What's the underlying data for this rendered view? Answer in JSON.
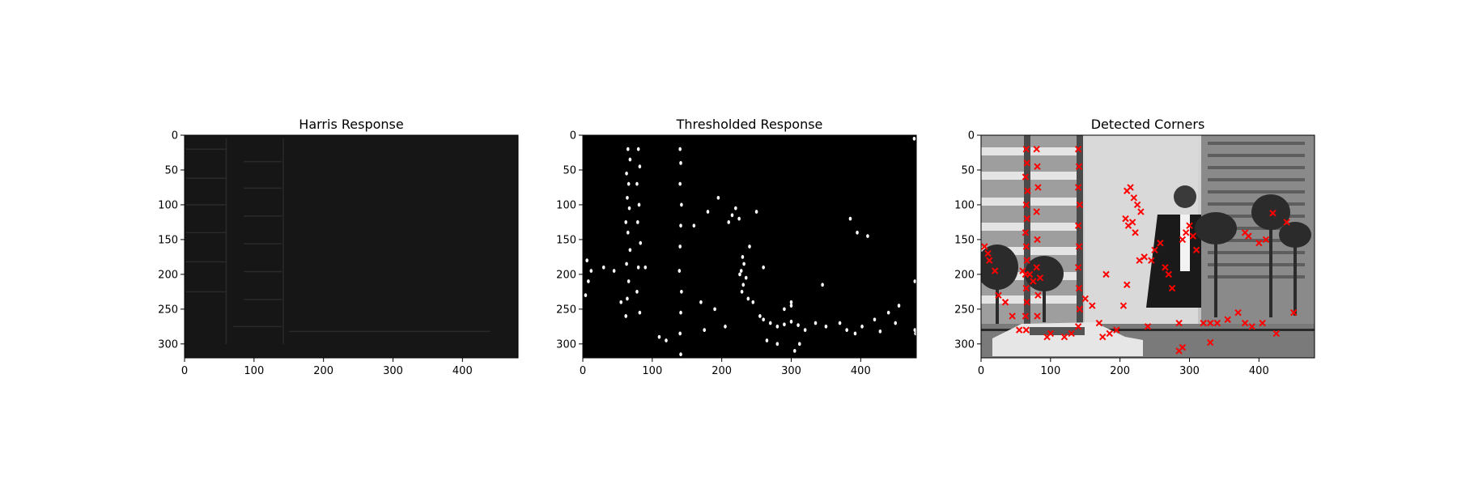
{
  "figure": {
    "background": "#ffffff"
  },
  "panels": [
    {
      "title": "Harris Response",
      "image_kind": "harris-response-heatmap",
      "colors": {
        "background": "#161616",
        "accent": "#2a2a2a"
      }
    },
    {
      "title": "Thresholded Response",
      "image_kind": "binary-threshold-map",
      "colors": {
        "background": "#000000",
        "accent": "#ffffff"
      }
    },
    {
      "title": "Detected Corners",
      "image_kind": "grayscale-photo-with-corner-markers",
      "colors": {
        "background": "#cfcfcf",
        "accent": "#ff0000"
      }
    }
  ],
  "chart_data": [
    {
      "type": "heatmap",
      "title": "Harris Response",
      "xlim": [
        0,
        480
      ],
      "ylim": [
        320,
        0
      ],
      "xticks": [
        0,
        100,
        200,
        300,
        400
      ],
      "yticks": [
        0,
        50,
        100,
        150,
        200,
        250,
        300
      ],
      "grid": false,
      "colormap": "gray",
      "features": [
        {
          "x": [
            2,
            60
          ],
          "y": [
            20,
            20
          ]
        },
        {
          "x": [
            2,
            60
          ],
          "y": [
            62,
            62
          ]
        },
        {
          "x": [
            2,
            60
          ],
          "y": [
            100,
            100
          ]
        },
        {
          "x": [
            2,
            60
          ],
          "y": [
            140,
            140
          ]
        },
        {
          "x": [
            2,
            60
          ],
          "y": [
            182,
            182
          ]
        },
        {
          "x": [
            2,
            60
          ],
          "y": [
            225,
            225
          ]
        },
        {
          "x": [
            85,
            140
          ],
          "y": [
            38,
            38
          ]
        },
        {
          "x": [
            85,
            140
          ],
          "y": [
            76,
            76
          ]
        },
        {
          "x": [
            85,
            140
          ],
          "y": [
            116,
            116
          ]
        },
        {
          "x": [
            85,
            140
          ],
          "y": [
            156,
            156
          ]
        },
        {
          "x": [
            85,
            140
          ],
          "y": [
            196,
            196
          ]
        },
        {
          "x": [
            85,
            140
          ],
          "y": [
            236,
            236
          ]
        },
        {
          "x": [
            70,
            140
          ],
          "y": [
            275,
            275
          ]
        },
        {
          "x": [
            150,
            440
          ],
          "y": [
            282,
            282
          ]
        },
        {
          "x": [
            60,
            60
          ],
          "y": [
            5,
            300
          ]
        },
        {
          "x": [
            142,
            142
          ],
          "y": [
            5,
            300
          ]
        }
      ]
    },
    {
      "type": "heatmap",
      "title": "Thresholded Response",
      "xlim": [
        0,
        480
      ],
      "ylim": [
        320,
        0
      ],
      "xticks": [
        0,
        100,
        200,
        300,
        400
      ],
      "yticks": [
        0,
        50,
        100,
        150,
        200,
        250,
        300
      ],
      "grid": false,
      "colormap": "binary",
      "x": [
        65,
        68,
        63,
        66,
        64,
        67,
        62,
        65,
        68,
        63,
        66,
        64,
        62,
        80,
        82,
        78,
        81,
        79,
        83,
        80,
        78,
        82,
        140,
        141,
        140,
        142,
        141,
        140,
        139,
        142,
        141,
        140,
        141,
        6,
        12,
        8,
        4,
        30,
        45,
        90,
        55,
        300,
        230,
        232,
        228,
        235,
        231,
        229,
        238,
        225,
        240,
        226,
        215,
        220,
        210,
        250,
        260,
        270,
        280,
        290,
        300,
        310,
        320,
        335,
        350,
        370,
        380,
        392,
        402,
        420,
        428,
        440,
        450,
        478,
        479,
        477,
        478,
        455,
        410,
        395,
        385,
        300,
        312,
        305,
        110,
        120,
        175,
        190,
        205,
        245,
        260,
        265,
        280,
        160,
        180,
        195,
        170,
        255,
        290,
        345
      ],
      "y": [
        20,
        35,
        55,
        70,
        90,
        105,
        125,
        140,
        165,
        185,
        210,
        235,
        260,
        20,
        45,
        70,
        100,
        125,
        155,
        190,
        225,
        255,
        20,
        40,
        70,
        100,
        130,
        160,
        195,
        225,
        255,
        285,
        315,
        180,
        195,
        210,
        230,
        190,
        195,
        190,
        240,
        240,
        175,
        185,
        195,
        205,
        215,
        225,
        235,
        120,
        160,
        200,
        115,
        105,
        125,
        110,
        190,
        270,
        275,
        272,
        268,
        273,
        280,
        270,
        275,
        270,
        280,
        285,
        275,
        265,
        282,
        255,
        270,
        280,
        285,
        5,
        210,
        245,
        145,
        140,
        120,
        245,
        300,
        310,
        290,
        295,
        280,
        250,
        275,
        240,
        265,
        295,
        300,
        130,
        110,
        90,
        240,
        260,
        250,
        215
      ]
    },
    {
      "type": "scatter",
      "title": "Detected Corners",
      "xlim": [
        0,
        480
      ],
      "ylim": [
        320,
        0
      ],
      "xticks": [
        0,
        100,
        200,
        300,
        400
      ],
      "yticks": [
        0,
        50,
        100,
        150,
        200,
        250,
        300
      ],
      "grid": false,
      "marker": "x",
      "marker_color": "#ff0000",
      "x": [
        65,
        66,
        64,
        67,
        65,
        66,
        64,
        65,
        66,
        64,
        65,
        66,
        64,
        65,
        80,
        81,
        82,
        80,
        81,
        80,
        82,
        81,
        140,
        141,
        140,
        142,
        140,
        141,
        140,
        141,
        142,
        140,
        5,
        10,
        12,
        20,
        25,
        35,
        45,
        55,
        60,
        70,
        75,
        85,
        95,
        100,
        120,
        130,
        150,
        160,
        170,
        175,
        185,
        195,
        205,
        210,
        215,
        220,
        225,
        230,
        208,
        212,
        218,
        222,
        228,
        235,
        245,
        250,
        258,
        265,
        270,
        275,
        285,
        290,
        295,
        300,
        305,
        310,
        320,
        330,
        340,
        355,
        370,
        380,
        390,
        405,
        420,
        425,
        440,
        450,
        380,
        385,
        400,
        410,
        285,
        290,
        330,
        180,
        210,
        240
      ],
      "y": [
        20,
        40,
        60,
        80,
        100,
        120,
        140,
        160,
        180,
        200,
        220,
        240,
        260,
        280,
        20,
        45,
        75,
        110,
        150,
        190,
        230,
        260,
        20,
        45,
        75,
        100,
        130,
        160,
        190,
        220,
        250,
        275,
        160,
        170,
        180,
        195,
        230,
        240,
        260,
        280,
        195,
        200,
        210,
        205,
        290,
        285,
        290,
        285,
        235,
        245,
        270,
        290,
        285,
        280,
        245,
        80,
        75,
        90,
        100,
        110,
        120,
        130,
        125,
        140,
        180,
        175,
        180,
        165,
        155,
        190,
        200,
        220,
        270,
        150,
        140,
        130,
        145,
        165,
        270,
        270,
        270,
        265,
        255,
        270,
        275,
        270,
        112,
        285,
        125,
        255,
        140,
        145,
        155,
        150,
        310,
        305,
        298,
        200,
        215,
        275
      ]
    }
  ]
}
